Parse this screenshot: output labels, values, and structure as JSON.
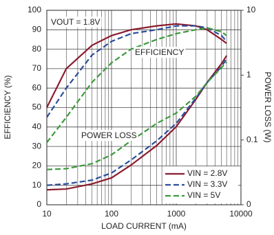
{
  "chart_data": {
    "type": "line",
    "x_label": "LOAD CURRENT (mA)",
    "y_label": "EFFICIENCY (%)",
    "y2_label": "POWER LOSS (W)",
    "annotations": [
      "VOUT = 1.8V",
      "EFFICIENCY",
      "POWER LOSS"
    ],
    "x": [
      10,
      20,
      50,
      100,
      200,
      500,
      1000,
      2000,
      3000,
      5000,
      6000
    ],
    "xlim": [
      10,
      10000
    ],
    "xticks": [
      10,
      100,
      1000,
      10000
    ],
    "xlog": true,
    "ylim": [
      0,
      100
    ],
    "yticks": [
      0,
      10,
      20,
      30,
      40,
      50,
      60,
      70,
      80,
      90,
      100
    ],
    "y2lim": [
      0.01,
      10
    ],
    "y2ticks": [
      {
        "value": 0.01,
        "label": "0"
      },
      0.1,
      1,
      10
    ],
    "y2log": true,
    "grid": true,
    "minor_grid": true,
    "legend": "lower right",
    "series": [
      {
        "name": "VIN = 2.8V",
        "color": "#8b1a2e",
        "dash": false,
        "efficiency": [
          50,
          70,
          82,
          87,
          90,
          92,
          93,
          92,
          90,
          85,
          83
        ],
        "power_loss": [
          0.017,
          0.0175,
          0.021,
          0.026,
          0.041,
          0.082,
          0.16,
          0.42,
          0.77,
          1.5,
          2.0
        ]
      },
      {
        "name": "VIN = 3.3V",
        "color": "#2a4d9b",
        "dash": true,
        "efficiency": [
          45,
          60,
          77,
          84,
          88,
          90,
          92,
          92,
          91,
          87,
          84
        ],
        "power_loss": [
          0.02,
          0.021,
          0.024,
          0.031,
          0.049,
          0.097,
          0.18,
          0.44,
          0.77,
          1.35,
          1.8
        ]
      },
      {
        "name": "VIN = 5V",
        "color": "#3a9a3a",
        "dash": true,
        "efficiency": [
          32,
          45,
          63,
          73,
          80,
          85,
          88,
          90,
          91,
          89,
          87
        ],
        "power_loss": [
          0.035,
          0.036,
          0.043,
          0.059,
          0.097,
          0.18,
          0.26,
          0.47,
          0.77,
          1.3,
          1.6
        ]
      }
    ]
  }
}
